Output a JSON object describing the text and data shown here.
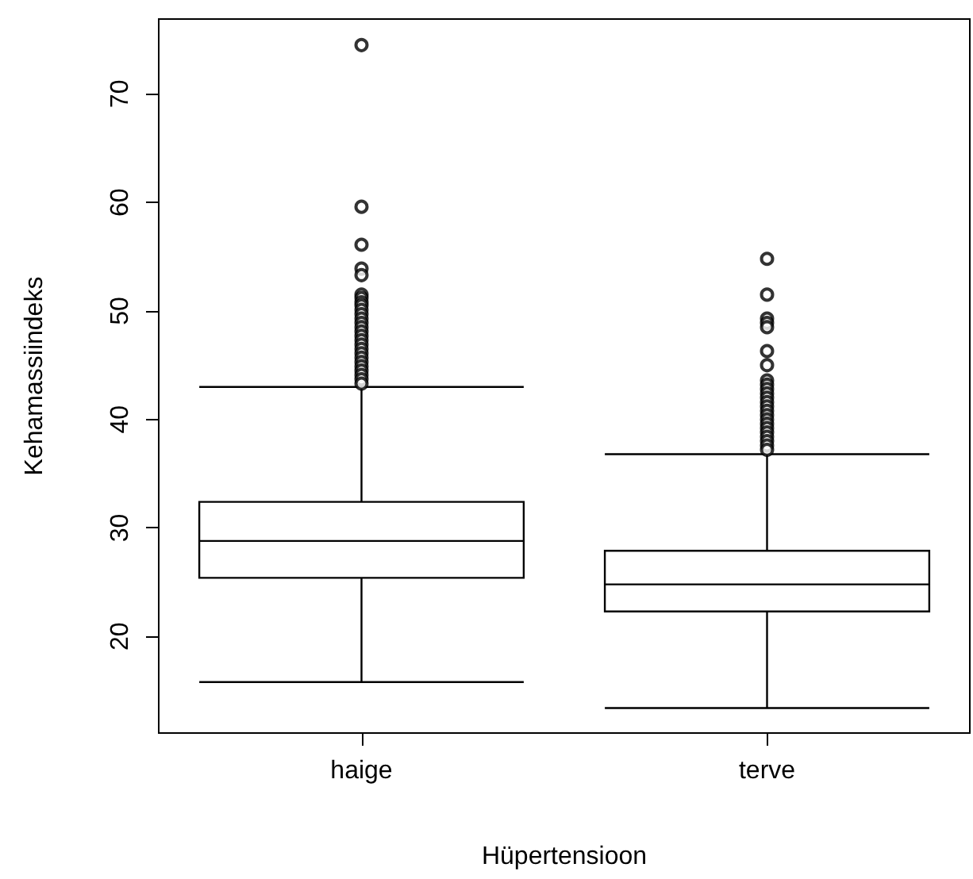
{
  "chart_data": {
    "type": "box",
    "xlabel": "Hüpertensioon",
    "ylabel": "Kehamassiindeks",
    "categories": [
      "haige",
      "terve"
    ],
    "boxes": [
      {
        "low": 15.8,
        "q1": 25.4,
        "median": 28.8,
        "q3": 32.4,
        "high": 43,
        "outliers": [
          74.5,
          59.6,
          56.1,
          53.9,
          53.3,
          51.5,
          51.2,
          50.8,
          50.5,
          50.1,
          49.7,
          49.3,
          48.9,
          48.5,
          48.1,
          47.7,
          47.3,
          46.9,
          46.5,
          46.1,
          45.7,
          45.3,
          44.9,
          44.5,
          44.1,
          43.7,
          43.3
        ]
      },
      {
        "low": 13.4,
        "q1": 22.3,
        "median": 24.8,
        "q3": 27.9,
        "high": 36.8,
        "outliers": [
          54.8,
          51.5,
          49.3,
          48.9,
          48.5,
          46.3,
          45,
          43.6,
          43.2,
          42.8,
          42.4,
          42,
          41.6,
          41.2,
          40.8,
          40.4,
          40,
          39.6,
          39.2,
          38.8,
          38.4,
          38,
          37.6,
          37.2
        ]
      }
    ],
    "ylim": [
      11.1,
      76.9
    ],
    "yticks": [
      20,
      30,
      40,
      50,
      60,
      70
    ],
    "grid": false,
    "marker": "circle"
  }
}
